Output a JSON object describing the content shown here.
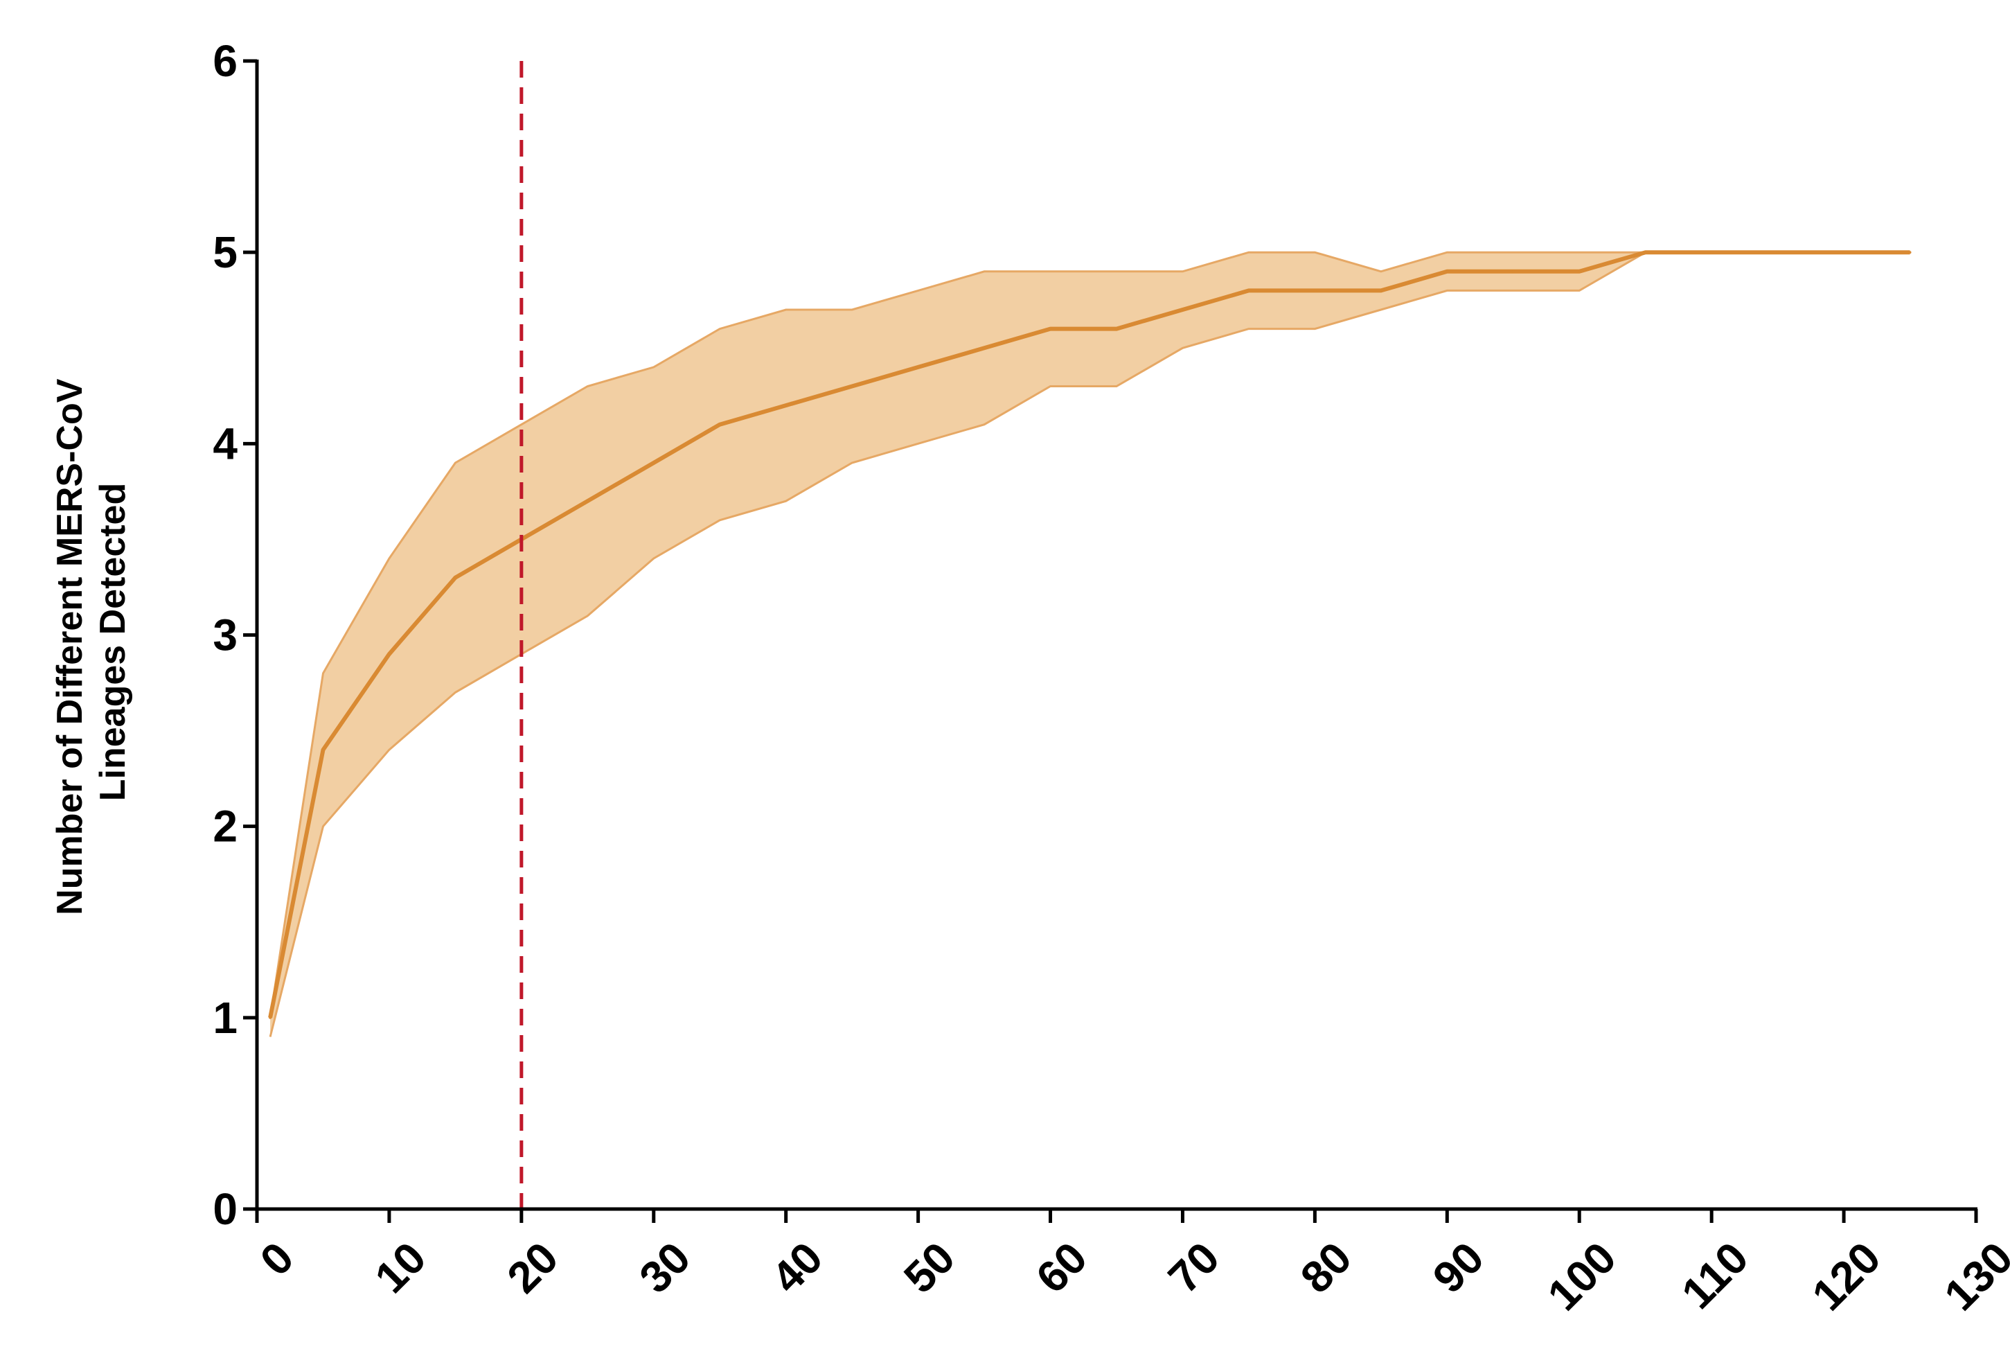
{
  "chart_data": {
    "type": "area",
    "title": "",
    "xlabel": "",
    "ylabel_lines": [
      "Number of Different MERS-CoV",
      "Lineages Detected"
    ],
    "xlim": [
      0,
      130
    ],
    "ylim": [
      0,
      6
    ],
    "x_ticks": [
      0,
      10,
      20,
      30,
      40,
      50,
      60,
      70,
      80,
      90,
      100,
      110,
      120,
      130
    ],
    "y_ticks": [
      0,
      1,
      2,
      3,
      4,
      5,
      6
    ],
    "grid": false,
    "legend": "none",
    "reference_line": {
      "x": 20,
      "style": "dashed",
      "color": "#c0182a"
    },
    "series": [
      {
        "x": [
          1,
          5,
          10,
          15,
          20,
          25,
          30,
          35,
          40,
          45,
          50,
          55,
          60,
          65,
          70,
          75,
          80,
          85,
          90,
          95,
          100,
          105,
          110,
          115,
          120,
          125
        ],
        "mean": [
          1.0,
          2.4,
          2.9,
          3.3,
          3.5,
          3.7,
          3.9,
          4.1,
          4.2,
          4.3,
          4.4,
          4.5,
          4.6,
          4.6,
          4.7,
          4.8,
          4.8,
          4.8,
          4.9,
          4.9,
          4.9,
          5.0,
          5.0,
          5.0,
          5.0,
          5.0
        ],
        "lower": [
          0.9,
          2.0,
          2.4,
          2.7,
          2.9,
          3.1,
          3.4,
          3.6,
          3.7,
          3.9,
          4.0,
          4.1,
          4.3,
          4.3,
          4.5,
          4.6,
          4.6,
          4.7,
          4.8,
          4.8,
          4.8,
          5.0,
          5.0,
          5.0,
          5.0,
          5.0
        ],
        "upper": [
          1.0,
          2.8,
          3.4,
          3.9,
          4.1,
          4.3,
          4.4,
          4.6,
          4.7,
          4.7,
          4.8,
          4.9,
          4.9,
          4.9,
          4.9,
          5.0,
          5.0,
          4.9,
          5.0,
          5.0,
          5.0,
          5.0,
          5.0,
          5.0,
          5.0,
          5.0
        ],
        "line_color": "#d98a33",
        "band_color": "#f2cfa3",
        "band_edge_color": "#e6a865"
      }
    ]
  }
}
